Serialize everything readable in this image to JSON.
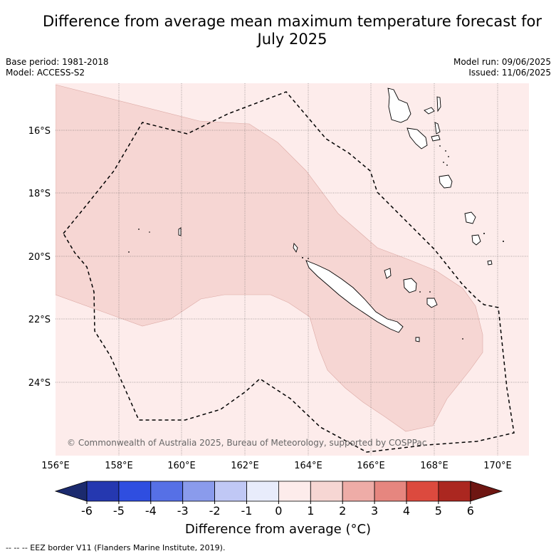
{
  "title": "Difference from average mean maximum temperature forecast for July 2025",
  "title_line1": "Difference from average mean maximum temperature forecast for",
  "title_line2": "July 2025",
  "base_period": "Base period: 1981-2018",
  "model": "Model: ACCESS-S2",
  "model_run": "Model run: 09/06/2025",
  "issued": "Issued: 11/06/2025",
  "copyright": "© Commonwealth of Australia 2025, Bureau of Meteorology, supported by COSPPac",
  "footnote": "--  --  -- EEZ border V11 (Flanders Marine Institute, 2019).",
  "colorbar": {
    "label": "Difference from average (°C)",
    "ticks": [
      "-6",
      "-5",
      "-4",
      "-3",
      "-2",
      "-1",
      "0",
      "1",
      "2",
      "3",
      "4",
      "5",
      "6"
    ],
    "colors": [
      "#1b2a6e",
      "#2538b0",
      "#2f4ee0",
      "#5670e6",
      "#8a9bec",
      "#c0c8f5",
      "#e8ecfb",
      "#fdeceb",
      "#f6d6d3",
      "#eeaca7",
      "#e6867f",
      "#dc4a3e",
      "#ab2720",
      "#6e1612"
    ]
  },
  "map": {
    "lat_labels": [
      "16°S",
      "18°S",
      "20°S",
      "22°S",
      "24°S"
    ],
    "lon_labels": [
      "156°E",
      "158°E",
      "160°E",
      "162°E",
      "164°E",
      "166°E",
      "168°E",
      "170°E"
    ],
    "regions": [
      {
        "name": "0 to 1 °C",
        "color": "#fdeceb"
      },
      {
        "name": "1 to 2 °C",
        "color": "#f6d6d3"
      }
    ]
  }
}
